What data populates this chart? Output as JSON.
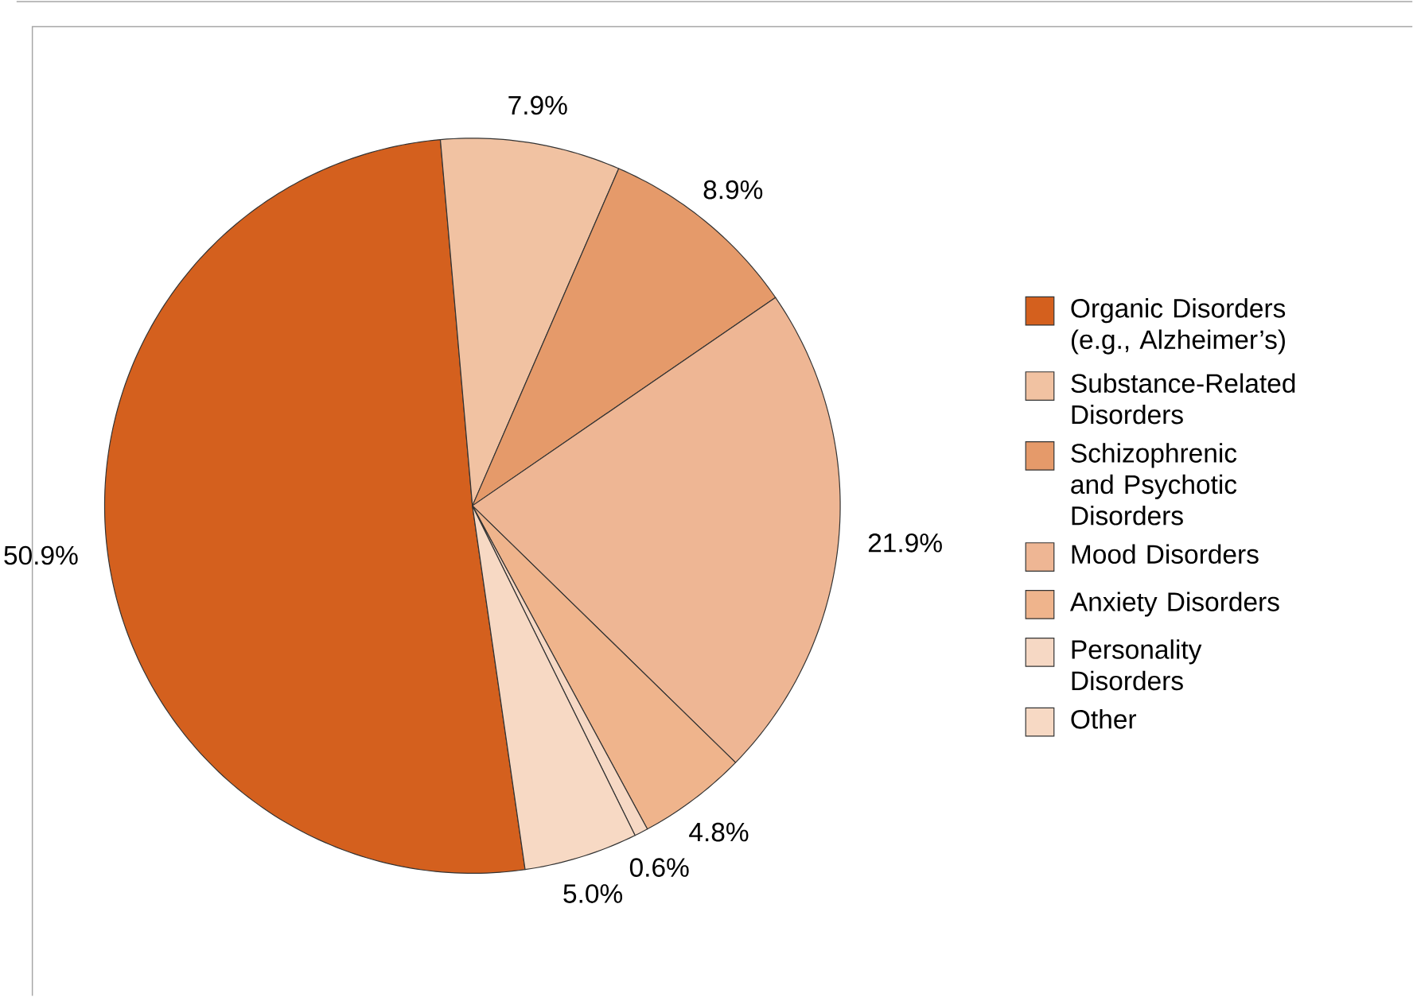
{
  "chart_data": {
    "type": "pie",
    "categories": [
      "Organic Disorders (e.g., Alzheimer’s)",
      "Substance-Related Disorders",
      "Schizophrenic and Psychotic Disorders",
      "Mood Disorders",
      "Anxiety Disorders",
      "Personality Disorders",
      "Other"
    ],
    "values": [
      50.9,
      7.9,
      8.9,
      21.9,
      4.8,
      0.6,
      5.0
    ],
    "value_labels": [
      "50.9%",
      "7.9%",
      "8.9%",
      "21.9%",
      "4.8%",
      "0.6%",
      "5.0%"
    ],
    "colors": [
      "#d4601e",
      "#f1c2a2",
      "#e59a6a",
      "#eeb694",
      "#efb48c",
      "#f6d8c4",
      "#f7d9c4"
    ],
    "legend": "right"
  }
}
